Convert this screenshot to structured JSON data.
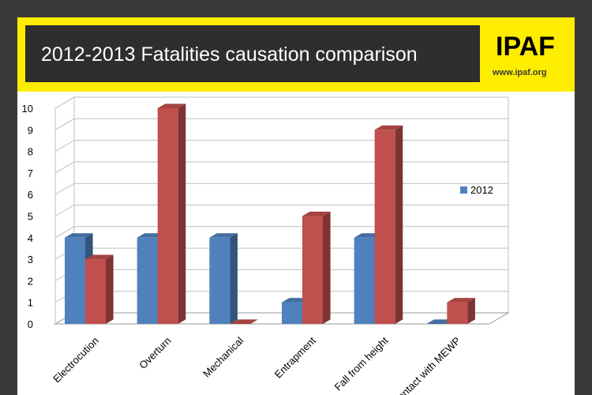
{
  "slide": {
    "title": "2012-2013 Fatalities causation comparison",
    "logo_text": "IPAF",
    "logo_url": "www.ipaf.org"
  },
  "colors": {
    "banner": "#ffed00",
    "title_box": "#2e2e2e",
    "series_2012": "#4f81bd",
    "series_2013": "#c0504d"
  },
  "chart_data": {
    "type": "bar",
    "categories": [
      "Electrocution",
      "Overturn",
      "Mechanical",
      "Entrapment",
      "Fall from height",
      "Contact with MEWP"
    ],
    "series": [
      {
        "name": "2012",
        "values": [
          4,
          4,
          4,
          1,
          4,
          0
        ]
      },
      {
        "values": [
          3,
          10,
          0,
          5,
          9,
          1
        ]
      }
    ],
    "ylim": [
      0,
      10
    ],
    "yticks": [
      "0",
      "1",
      "2",
      "3",
      "4",
      "5",
      "6",
      "7",
      "8",
      "9",
      "10"
    ],
    "grid": true,
    "legend_position": "right"
  }
}
